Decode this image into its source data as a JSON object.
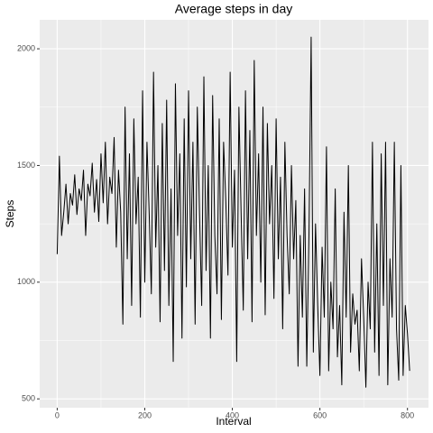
{
  "chart_data": {
    "type": "line",
    "title": "Average steps in day",
    "xlabel": "Interval",
    "ylabel": "Steps",
    "color": "#000000",
    "grid": true,
    "xlim": [
      -40,
      848
    ],
    "ylim": [
      462,
      2124
    ],
    "xticks": [
      0,
      200,
      400,
      600,
      800
    ],
    "yticks": [
      500,
      1000,
      1500,
      2000
    ],
    "xminor_ticks": [
      100,
      300,
      500,
      700
    ],
    "yminor_ticks": [
      750,
      1250,
      1750
    ],
    "x": [
      0,
      5,
      10,
      15,
      20,
      25,
      30,
      35,
      40,
      45,
      50,
      55,
      60,
      65,
      70,
      75,
      80,
      85,
      90,
      95,
      100,
      105,
      110,
      115,
      120,
      125,
      130,
      135,
      140,
      145,
      150,
      155,
      160,
      165,
      170,
      175,
      180,
      185,
      190,
      195,
      200,
      205,
      210,
      215,
      220,
      225,
      230,
      235,
      240,
      245,
      250,
      255,
      260,
      265,
      270,
      275,
      280,
      285,
      290,
      295,
      300,
      305,
      310,
      315,
      320,
      325,
      330,
      335,
      340,
      345,
      350,
      355,
      360,
      365,
      370,
      375,
      380,
      385,
      390,
      395,
      400,
      405,
      410,
      415,
      420,
      425,
      430,
      435,
      440,
      445,
      450,
      455,
      460,
      465,
      470,
      475,
      480,
      485,
      490,
      495,
      500,
      505,
      510,
      515,
      520,
      525,
      530,
      535,
      540,
      545,
      550,
      555,
      560,
      565,
      570,
      575,
      580,
      585,
      590,
      595,
      600,
      605,
      610,
      615,
      620,
      625,
      630,
      635,
      640,
      645,
      650,
      655,
      660,
      665,
      670,
      675,
      680,
      685,
      690,
      695,
      700,
      705,
      710,
      715,
      720,
      725,
      730,
      735,
      740,
      745,
      750,
      755,
      760,
      765,
      770,
      775,
      780,
      785,
      790,
      795,
      800,
      805
    ],
    "series": [
      {
        "name": "Steps",
        "color": "#000000",
        "values": [
          1120,
          1540,
          1200,
          1300,
          1420,
          1250,
          1380,
          1330,
          1460,
          1290,
          1400,
          1350,
          1480,
          1200,
          1420,
          1370,
          1510,
          1300,
          1440,
          1260,
          1550,
          1340,
          1600,
          1250,
          1450,
          1380,
          1620,
          1150,
          1480,
          1300,
          820,
          1750,
          1100,
          1550,
          900,
          1700,
          1250,
          1450,
          850,
          1820,
          1000,
          1600,
          1300,
          950,
          1900,
          1150,
          1500,
          830,
          1680,
          1050,
          1780,
          900,
          1400,
          660,
          1850,
          1200,
          1550,
          760,
          1700,
          980,
          1820,
          1100,
          1600,
          820,
          1750,
          1300,
          900,
          1880,
          1050,
          1500,
          760,
          1800,
          1200,
          950,
          1700,
          840,
          1600,
          1350,
          1030,
          1900,
          1150,
          1480,
          660,
          1750,
          1300,
          880,
          1820,
          1100,
          1650,
          830,
          1950,
          1200,
          1550,
          1000,
          1750,
          860,
          1680,
          1250,
          1500,
          930,
          1700,
          1100,
          1450,
          800,
          1600,
          1200,
          950,
          1500,
          1100,
          1350,
          640,
          1200,
          850,
          1400,
          640,
          1200,
          2050,
          700,
          1250,
          900,
          600,
          1150,
          850,
          1580,
          620,
          1000,
          800,
          1400,
          680,
          900,
          560,
          1300,
          850,
          1500,
          700,
          950,
          820,
          880,
          620,
          1100,
          850,
          550,
          1000,
          800,
          1600,
          700,
          1250,
          600,
          1550,
          900,
          1600,
          560,
          1100,
          850,
          1600,
          800,
          580,
          1500,
          600,
          900,
          780,
          620
        ]
      }
    ]
  }
}
